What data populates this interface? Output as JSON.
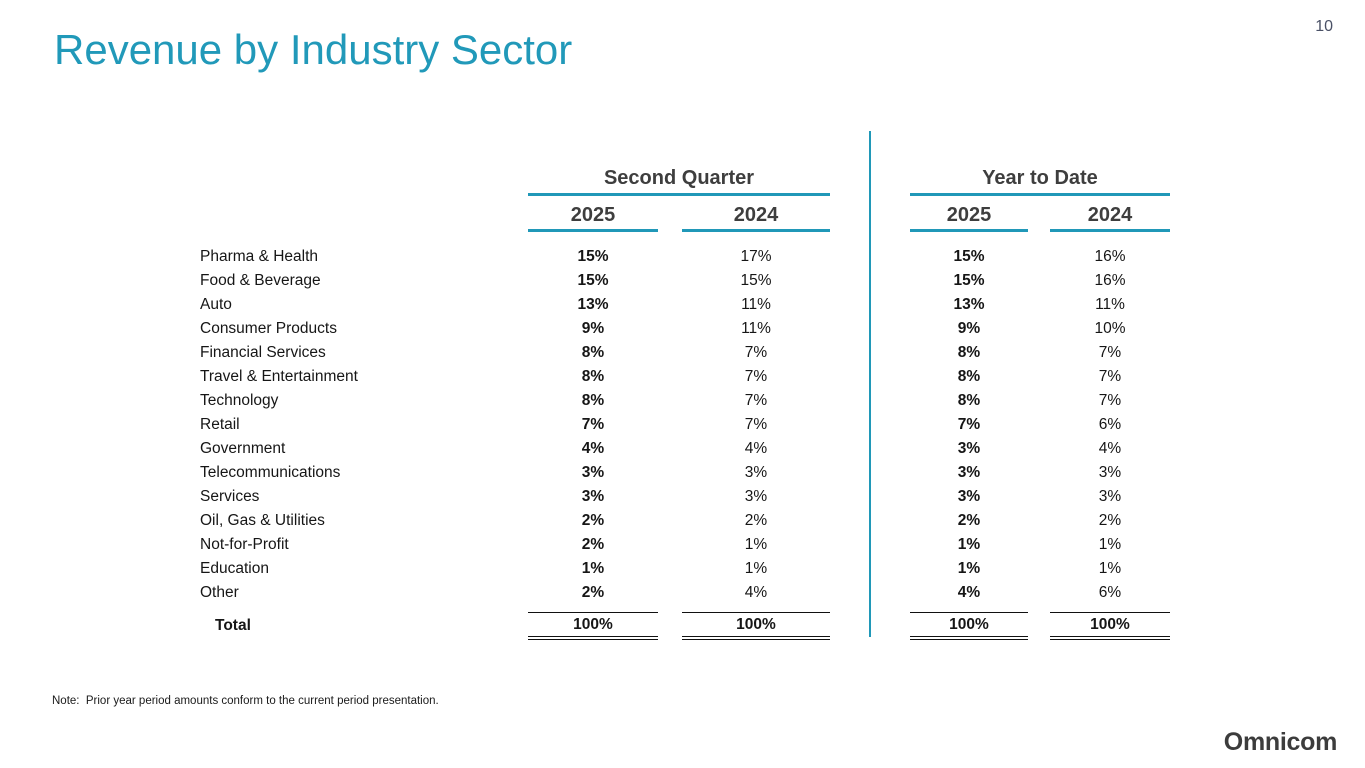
{
  "page": {
    "number": "10"
  },
  "title": "Revenue by Industry Sector",
  "colors": {
    "accent_teal": "#2098B8",
    "title_teal": "#2199B9",
    "header_gray": "#3E3E3E",
    "body_text": "#161616",
    "page_number_gray": "#4A5166",
    "logo_gray": "#3C3C3C"
  },
  "table": {
    "groups": [
      {
        "label": "Second Quarter"
      },
      {
        "label": "Year to Date"
      }
    ],
    "year_columns": [
      "2025",
      "2024",
      "2025",
      "2024"
    ],
    "rows": [
      {
        "label": "Pharma & Health",
        "sq_2025": "15%",
        "sq_2024": "17%",
        "ytd_2025": "15%",
        "ytd_2024": "16%"
      },
      {
        "label": "Food & Beverage",
        "sq_2025": "15%",
        "sq_2024": "15%",
        "ytd_2025": "15%",
        "ytd_2024": "16%"
      },
      {
        "label": "Auto",
        "sq_2025": "13%",
        "sq_2024": "11%",
        "ytd_2025": "13%",
        "ytd_2024": "11%"
      },
      {
        "label": "Consumer Products",
        "sq_2025": "9%",
        "sq_2024": "11%",
        "ytd_2025": "9%",
        "ytd_2024": "10%"
      },
      {
        "label": "Financial Services",
        "sq_2025": "8%",
        "sq_2024": "7%",
        "ytd_2025": "8%",
        "ytd_2024": "7%"
      },
      {
        "label": "Travel & Entertainment",
        "sq_2025": "8%",
        "sq_2024": "7%",
        "ytd_2025": "8%",
        "ytd_2024": "7%"
      },
      {
        "label": "Technology",
        "sq_2025": "8%",
        "sq_2024": "7%",
        "ytd_2025": "8%",
        "ytd_2024": "7%"
      },
      {
        "label": "Retail",
        "sq_2025": "7%",
        "sq_2024": "7%",
        "ytd_2025": "7%",
        "ytd_2024": "6%"
      },
      {
        "label": "Government",
        "sq_2025": "4%",
        "sq_2024": "4%",
        "ytd_2025": "3%",
        "ytd_2024": "4%"
      },
      {
        "label": "Telecommunications",
        "sq_2025": "3%",
        "sq_2024": "3%",
        "ytd_2025": "3%",
        "ytd_2024": "3%"
      },
      {
        "label": "Services",
        "sq_2025": "3%",
        "sq_2024": "3%",
        "ytd_2025": "3%",
        "ytd_2024": "3%"
      },
      {
        "label": "Oil, Gas & Utilities",
        "sq_2025": "2%",
        "sq_2024": "2%",
        "ytd_2025": "2%",
        "ytd_2024": "2%"
      },
      {
        "label": "Not-for-Profit",
        "sq_2025": "2%",
        "sq_2024": "1%",
        "ytd_2025": "1%",
        "ytd_2024": "1%"
      },
      {
        "label": "Education",
        "sq_2025": "1%",
        "sq_2024": "1%",
        "ytd_2025": "1%",
        "ytd_2024": "1%"
      },
      {
        "label": "Other",
        "sq_2025": "2%",
        "sq_2024": "4%",
        "ytd_2025": "4%",
        "ytd_2024": "6%"
      }
    ],
    "total": {
      "label": "Total",
      "sq_2025": "100%",
      "sq_2024": "100%",
      "ytd_2025": "100%",
      "ytd_2024": "100%"
    }
  },
  "note": "Note:  Prior year period amounts conform to the current period presentation.",
  "footer": {
    "logo": "Omnicom"
  }
}
